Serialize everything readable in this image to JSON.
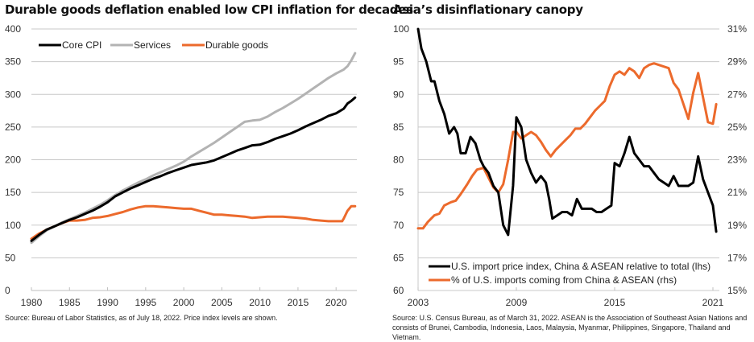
{
  "chart_data": [
    {
      "type": "line",
      "title": "Durable goods deflation enabled low CPI inflation for decades",
      "xlabel": "",
      "ylabel": "",
      "xlim": [
        1980,
        2022.6
      ],
      "ylim": [
        0,
        400
      ],
      "x_ticks": [
        1980,
        1985,
        1990,
        1995,
        2000,
        2005,
        2010,
        2015,
        2020
      ],
      "y_ticks": [
        0,
        50,
        100,
        150,
        200,
        250,
        300,
        350,
        400
      ],
      "grid": true,
      "legend": "top-left",
      "source": "Source: Bureau of Labor Statistics, as of July 18, 2022. Price index levels are shown.",
      "series": [
        {
          "name": "Core CPI",
          "color": "#000000",
          "x": [
            1980,
            1981,
            1982,
            1983,
            1984,
            1985,
            1986,
            1987,
            1988,
            1989,
            1990,
            1991,
            1992,
            1993,
            1994,
            1995,
            1996,
            1997,
            1998,
            1999,
            2000,
            2001,
            2002,
            2003,
            2004,
            2005,
            2006,
            2007,
            2008,
            2009,
            2010,
            2011,
            2012,
            2013,
            2014,
            2015,
            2016,
            2017,
            2018,
            2019,
            2020,
            2021,
            2021.5,
            2022,
            2022.5
          ],
          "values": [
            76,
            85,
            93,
            98,
            103,
            108,
            112,
            117,
            122,
            128,
            135,
            144,
            150,
            156,
            161,
            166,
            171,
            175,
            180,
            184,
            188,
            192,
            194,
            196,
            199,
            204,
            209,
            214,
            218,
            222,
            223,
            227,
            232,
            236,
            240,
            245,
            251,
            256,
            261,
            267,
            271,
            278,
            286,
            290,
            295
          ]
        },
        {
          "name": "Services",
          "color": "#b3b3b3",
          "x": [
            1980,
            1981,
            1982,
            1983,
            1984,
            1985,
            1986,
            1987,
            1988,
            1989,
            1990,
            1991,
            1992,
            1993,
            1994,
            1995,
            1996,
            1997,
            1998,
            1999,
            2000,
            2001,
            2002,
            2003,
            2004,
            2005,
            2006,
            2007,
            2008,
            2009,
            2010,
            2011,
            2012,
            2013,
            2014,
            2015,
            2016,
            2017,
            2018,
            2019,
            2020,
            2021,
            2021.5,
            2022,
            2022.5
          ],
          "values": [
            73,
            83,
            92,
            98,
            104,
            109,
            114,
            119,
            125,
            131,
            138,
            146,
            153,
            159,
            165,
            170,
            176,
            181,
            186,
            191,
            197,
            205,
            212,
            219,
            226,
            234,
            242,
            250,
            258,
            260,
            261,
            266,
            273,
            279,
            286,
            293,
            301,
            309,
            317,
            325,
            332,
            338,
            343,
            352,
            363
          ]
        },
        {
          "name": "Durable goods",
          "color": "#ec6a2c",
          "x": [
            1980,
            1981,
            1982,
            1983,
            1984,
            1985,
            1986,
            1987,
            1988,
            1989,
            1990,
            1991,
            1992,
            1993,
            1994,
            1995,
            1996,
            1997,
            1998,
            1999,
            2000,
            2001,
            2002,
            2003,
            2004,
            2005,
            2006,
            2007,
            2008,
            2009,
            2010,
            2011,
            2012,
            2013,
            2014,
            2015,
            2016,
            2017,
            2018,
            2019,
            2020,
            2020.8,
            2021,
            2021.5,
            2022,
            2022.5
          ],
          "values": [
            79,
            87,
            93,
            98,
            103,
            107,
            107,
            108,
            111,
            112,
            114,
            117,
            120,
            124,
            127,
            129,
            129,
            128,
            127,
            126,
            125,
            125,
            122,
            119,
            116,
            116,
            115,
            114,
            113,
            111,
            112,
            113,
            113,
            113,
            112,
            111,
            110,
            108,
            107,
            106,
            106,
            106,
            110,
            122,
            129,
            129
          ]
        }
      ]
    },
    {
      "type": "line",
      "title": "Asia’s disinflationary canopy",
      "xlabel": "",
      "ylabel_left": "",
      "ylabel_right": "",
      "xlim": [
        2003,
        2021.3
      ],
      "ylim_left": [
        60,
        100
      ],
      "ylim_right": [
        15,
        31
      ],
      "x_ticks": [
        2003,
        2009,
        2015,
        2021
      ],
      "y_ticks_left": [
        60,
        65,
        70,
        75,
        80,
        85,
        90,
        95,
        100
      ],
      "y_ticks_right": [
        "15%",
        "17%",
        "19%",
        "21%",
        "23%",
        "25%",
        "27%",
        "29%",
        "31%"
      ],
      "grid": true,
      "legend": "bottom-left",
      "source_line1": "Source: U.S. Census Bureau, as of March 31, 2022. ASEAN is the Association of Southeast Asian Nations and",
      "source_line2": "consists of Brunei, Cambodia, Indonesia, Laos, Malaysia, Myanmar, Philippines, Singapore, Thailand and Vietnam.",
      "series": [
        {
          "name": "U.S. import price index, China & ASEAN relative to total (lhs)",
          "axis": "left",
          "color": "#000000",
          "x": [
            2003,
            2003.2,
            2003.5,
            2003.8,
            2004.0,
            2004.3,
            2004.6,
            2004.9,
            2005.2,
            2005.4,
            2005.6,
            2005.9,
            2006.2,
            2006.5,
            2006.8,
            2007.0,
            2007.3,
            2007.6,
            2007.9,
            2008.2,
            2008.5,
            2008.8,
            2009.0,
            2009.3,
            2009.6,
            2009.9,
            2010.2,
            2010.5,
            2010.8,
            2011.0,
            2011.2,
            2011.5,
            2011.8,
            2012.1,
            2012.4,
            2012.7,
            2013.0,
            2013.3,
            2013.6,
            2013.9,
            2014.2,
            2014.5,
            2014.8,
            2015.0,
            2015.3,
            2015.6,
            2015.9,
            2016.2,
            2016.5,
            2016.8,
            2017.1,
            2017.4,
            2017.7,
            2018.0,
            2018.3,
            2018.6,
            2018.9,
            2019.2,
            2019.5,
            2019.8,
            2020.1,
            2020.4,
            2020.7,
            2021.0,
            2021.2
          ],
          "values": [
            100,
            97,
            95,
            92,
            92,
            89,
            87,
            84,
            85,
            84,
            81,
            81,
            83.5,
            82.5,
            80,
            79,
            78,
            76,
            75,
            70,
            68.5,
            76,
            86.5,
            85,
            80,
            78,
            76.5,
            77.5,
            76.5,
            74,
            71,
            71.5,
            72,
            72,
            71.5,
            74,
            72.5,
            72.5,
            72.5,
            72,
            72,
            72.5,
            73,
            79.5,
            79,
            81,
            83.5,
            81,
            80,
            79,
            79,
            78,
            77,
            76.5,
            76,
            77.5,
            76,
            76,
            76,
            76.5,
            80.5,
            77,
            75,
            73,
            69
          ]
        },
        {
          "name": "% of U.S. imports coming from China & ASEAN (rhs)",
          "axis": "right",
          "color": "#ec6a2c",
          "x": [
            2003,
            2003.3,
            2003.6,
            2004.0,
            2004.3,
            2004.6,
            2005.0,
            2005.3,
            2005.6,
            2006.0,
            2006.3,
            2006.6,
            2007.0,
            2007.3,
            2007.6,
            2007.9,
            2008.2,
            2008.5,
            2008.8,
            2009.0,
            2009.3,
            2009.6,
            2009.9,
            2010.2,
            2010.5,
            2010.8,
            2011.1,
            2011.4,
            2011.7,
            2012.0,
            2012.3,
            2012.6,
            2012.9,
            2013.2,
            2013.5,
            2013.8,
            2014.1,
            2014.4,
            2014.7,
            2015.0,
            2015.3,
            2015.6,
            2015.9,
            2016.2,
            2016.5,
            2016.8,
            2017.1,
            2017.4,
            2017.7,
            2018.0,
            2018.3,
            2018.6,
            2018.9,
            2019.2,
            2019.5,
            2019.8,
            2020.1,
            2020.4,
            2020.7,
            2021.0,
            2021.2
          ],
          "values": [
            18.8,
            18.8,
            19.2,
            19.6,
            19.7,
            20.2,
            20.4,
            20.5,
            20.9,
            21.5,
            22.0,
            22.4,
            22.5,
            21.9,
            21.3,
            21.0,
            21.5,
            23.0,
            24.7,
            24.7,
            24.3,
            24.5,
            24.7,
            24.5,
            24.1,
            23.6,
            23.2,
            23.6,
            23.9,
            24.2,
            24.5,
            24.9,
            24.9,
            25.2,
            25.6,
            26.0,
            26.3,
            26.6,
            27.5,
            28.2,
            28.4,
            28.2,
            28.6,
            28.4,
            28.0,
            28.6,
            28.8,
            28.9,
            28.8,
            28.7,
            28.6,
            27.7,
            27.3,
            26.4,
            25.5,
            27.1,
            28.3,
            26.8,
            25.3,
            25.2,
            26.4
          ]
        }
      ]
    }
  ]
}
